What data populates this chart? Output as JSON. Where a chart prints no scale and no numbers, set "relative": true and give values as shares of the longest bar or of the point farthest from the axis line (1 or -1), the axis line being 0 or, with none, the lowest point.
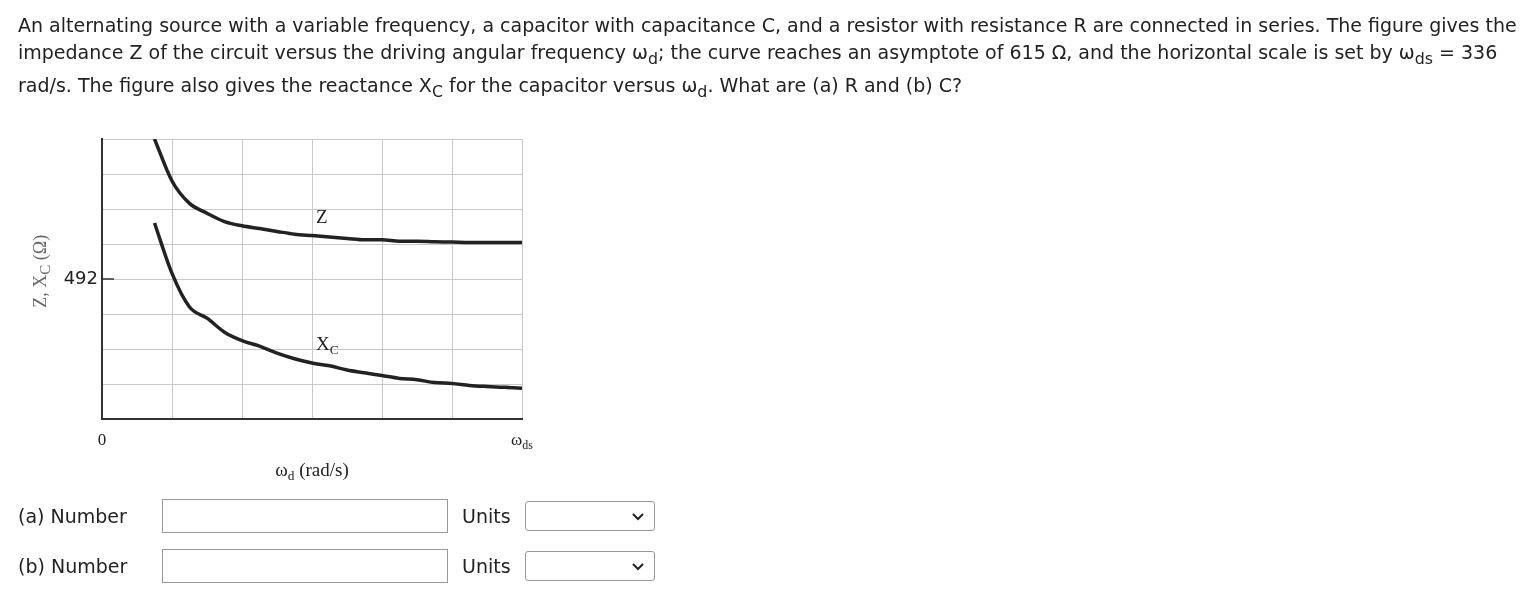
{
  "chart_data": {
    "type": "line",
    "relative": true,
    "title": "An alternating source with a variable frequency, a capacitor with capacitance C, and a resistor with resistance R are connected in series. The figure gives the impedance Z of the circuit versus the driving angular frequency ω$_{d}$; the curve reaches an asymptote of 615 Ω, and the horizontal scale is set by ω$_{ds}$ = 336 rad/s. The figure also gives the reactance X$_{C}$ for the capacitor versus ω$_{d}$. What are (a)  R and (b)  C?",
    "xlabel": "ω$_{d}$ (rad/s)",
    "ylabel": "Z, X$_{C}$ (Ω)",
    "categories": [
      "0",
      null,
      null,
      null,
      null,
      null,
      null,
      null,
      null,
      null,
      null,
      null,
      null,
      null,
      null,
      null,
      null,
      null,
      null,
      null,
      null,
      null,
      null,
      null,
      "ω$_{ds}$"
    ],
    "series": [
      {
        "name": "Z",
        "color": "#222222",
        "values": [
          null,
          null,
          null,
          1.0,
          0.85,
          0.77,
          0.735,
          0.705,
          0.69,
          0.68,
          0.67,
          0.66,
          0.655,
          0.65,
          0.645,
          0.64,
          0.64,
          0.635,
          0.635,
          0.633,
          0.632,
          0.63,
          0.63,
          0.63,
          0.63
        ]
      },
      {
        "name": "X$_{C}$",
        "color": "#222222",
        "values": [
          null,
          null,
          null,
          0.7,
          0.52,
          0.4,
          0.36,
          0.31,
          0.28,
          0.26,
          0.235,
          0.215,
          0.2,
          0.19,
          0.175,
          0.165,
          0.155,
          0.145,
          0.14,
          0.13,
          0.127,
          0.12,
          0.116,
          0.113,
          0.11
        ]
      }
    ],
    "grid": true,
    "legend": false,
    "marker": "none",
    "line_style": "solid",
    "annotations": [
      "492",
      "(a) Number",
      "Units",
      "(b) Number",
      "Units"
    ]
  }
}
